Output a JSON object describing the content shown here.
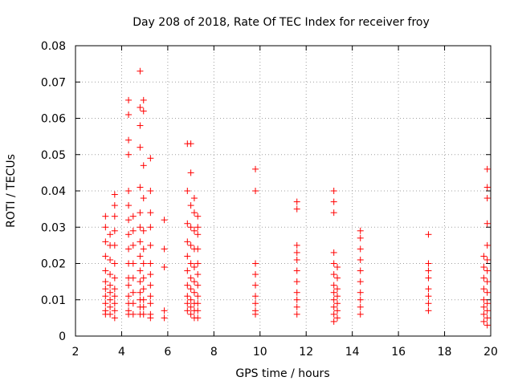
{
  "chart_data": {
    "type": "scatter",
    "title": "Day 208 of 2018, Rate Of TEC Index for receiver froy",
    "xlabel": "GPS time / hours",
    "ylabel": "ROTI / TECUs",
    "xlim": [
      2,
      20
    ],
    "ylim": [
      0,
      0.08
    ],
    "x_ticks": [
      "2",
      "4",
      "6",
      "8",
      "10",
      "12",
      "14",
      "16",
      "18",
      "20"
    ],
    "y_ticks": [
      "0",
      "0.01",
      "0.02",
      "0.03",
      "0.04",
      "0.05",
      "0.06",
      "0.07",
      "0.08"
    ],
    "grid": true,
    "marker": "+",
    "color": "#ff0000",
    "series": [
      {
        "name": "ROTI",
        "points": [
          [
            3.3,
            0.033
          ],
          [
            3.3,
            0.03
          ],
          [
            3.3,
            0.026
          ],
          [
            3.3,
            0.022
          ],
          [
            3.3,
            0.018
          ],
          [
            3.3,
            0.015
          ],
          [
            3.3,
            0.013
          ],
          [
            3.3,
            0.011
          ],
          [
            3.3,
            0.009
          ],
          [
            3.3,
            0.007
          ],
          [
            3.3,
            0.006
          ],
          [
            3.5,
            0.028
          ],
          [
            3.5,
            0.025
          ],
          [
            3.5,
            0.021
          ],
          [
            3.5,
            0.017
          ],
          [
            3.5,
            0.014
          ],
          [
            3.5,
            0.012
          ],
          [
            3.5,
            0.01
          ],
          [
            3.5,
            0.008
          ],
          [
            3.5,
            0.006
          ],
          [
            3.7,
            0.039
          ],
          [
            3.7,
            0.036
          ],
          [
            3.7,
            0.033
          ],
          [
            3.7,
            0.029
          ],
          [
            3.7,
            0.025
          ],
          [
            3.7,
            0.02
          ],
          [
            3.7,
            0.016
          ],
          [
            3.7,
            0.013
          ],
          [
            3.7,
            0.011
          ],
          [
            3.7,
            0.009
          ],
          [
            3.7,
            0.007
          ],
          [
            3.7,
            0.005
          ],
          [
            4.3,
            0.065
          ],
          [
            4.3,
            0.061
          ],
          [
            4.3,
            0.054
          ],
          [
            4.3,
            0.05
          ],
          [
            4.3,
            0.04
          ],
          [
            4.3,
            0.036
          ],
          [
            4.3,
            0.032
          ],
          [
            4.3,
            0.028
          ],
          [
            4.3,
            0.024
          ],
          [
            4.3,
            0.02
          ],
          [
            4.3,
            0.016
          ],
          [
            4.3,
            0.014
          ],
          [
            4.3,
            0.011
          ],
          [
            4.3,
            0.009
          ],
          [
            4.3,
            0.007
          ],
          [
            4.3,
            0.006
          ],
          [
            4.5,
            0.033
          ],
          [
            4.5,
            0.029
          ],
          [
            4.5,
            0.025
          ],
          [
            4.5,
            0.02
          ],
          [
            4.5,
            0.016
          ],
          [
            4.5,
            0.012
          ],
          [
            4.5,
            0.009
          ],
          [
            4.5,
            0.006
          ],
          [
            4.8,
            0.073
          ],
          [
            4.8,
            0.063
          ],
          [
            4.8,
            0.058
          ],
          [
            4.8,
            0.052
          ],
          [
            4.8,
            0.041
          ],
          [
            4.8,
            0.034
          ],
          [
            4.8,
            0.03
          ],
          [
            4.8,
            0.026
          ],
          [
            4.8,
            0.022
          ],
          [
            4.8,
            0.018
          ],
          [
            4.8,
            0.015
          ],
          [
            4.8,
            0.012
          ],
          [
            4.8,
            0.01
          ],
          [
            4.8,
            0.008
          ],
          [
            4.8,
            0.006
          ],
          [
            4.95,
            0.065
          ],
          [
            4.95,
            0.062
          ],
          [
            4.95,
            0.047
          ],
          [
            4.95,
            0.038
          ],
          [
            4.95,
            0.029
          ],
          [
            4.95,
            0.024
          ],
          [
            4.95,
            0.02
          ],
          [
            4.95,
            0.016
          ],
          [
            4.95,
            0.013
          ],
          [
            4.95,
            0.01
          ],
          [
            4.95,
            0.008
          ],
          [
            4.95,
            0.006
          ],
          [
            5.25,
            0.049
          ],
          [
            5.25,
            0.04
          ],
          [
            5.25,
            0.034
          ],
          [
            5.25,
            0.03
          ],
          [
            5.25,
            0.025
          ],
          [
            5.25,
            0.02
          ],
          [
            5.25,
            0.017
          ],
          [
            5.25,
            0.014
          ],
          [
            5.25,
            0.011
          ],
          [
            5.25,
            0.009
          ],
          [
            5.25,
            0.006
          ],
          [
            5.25,
            0.005
          ],
          [
            5.85,
            0.032
          ],
          [
            5.85,
            0.024
          ],
          [
            5.85,
            0.019
          ],
          [
            5.85,
            0.007
          ],
          [
            5.85,
            0.005
          ],
          [
            6.85,
            0.053
          ],
          [
            6.85,
            0.04
          ],
          [
            6.85,
            0.031
          ],
          [
            6.85,
            0.026
          ],
          [
            6.85,
            0.022
          ],
          [
            6.85,
            0.018
          ],
          [
            6.85,
            0.014
          ],
          [
            6.85,
            0.011
          ],
          [
            6.85,
            0.009
          ],
          [
            6.85,
            0.007
          ],
          [
            7.0,
            0.053
          ],
          [
            7.0,
            0.045
          ],
          [
            7.0,
            0.036
          ],
          [
            7.0,
            0.03
          ],
          [
            7.0,
            0.025
          ],
          [
            7.0,
            0.02
          ],
          [
            7.0,
            0.016
          ],
          [
            7.0,
            0.013
          ],
          [
            7.0,
            0.01
          ],
          [
            7.0,
            0.008
          ],
          [
            7.0,
            0.006
          ],
          [
            7.15,
            0.038
          ],
          [
            7.15,
            0.034
          ],
          [
            7.15,
            0.029
          ],
          [
            7.15,
            0.024
          ],
          [
            7.15,
            0.019
          ],
          [
            7.15,
            0.015
          ],
          [
            7.15,
            0.012
          ],
          [
            7.15,
            0.009
          ],
          [
            7.15,
            0.007
          ],
          [
            7.15,
            0.005
          ],
          [
            7.3,
            0.033
          ],
          [
            7.3,
            0.03
          ],
          [
            7.3,
            0.028
          ],
          [
            7.3,
            0.024
          ],
          [
            7.3,
            0.02
          ],
          [
            7.3,
            0.017
          ],
          [
            7.3,
            0.014
          ],
          [
            7.3,
            0.011
          ],
          [
            7.3,
            0.009
          ],
          [
            7.3,
            0.007
          ],
          [
            7.3,
            0.005
          ],
          [
            9.8,
            0.046
          ],
          [
            9.8,
            0.04
          ],
          [
            9.8,
            0.02
          ],
          [
            9.8,
            0.017
          ],
          [
            9.8,
            0.014
          ],
          [
            9.8,
            0.011
          ],
          [
            9.8,
            0.009
          ],
          [
            9.8,
            0.007
          ],
          [
            9.8,
            0.006
          ],
          [
            11.6,
            0.037
          ],
          [
            11.6,
            0.035
          ],
          [
            11.6,
            0.025
          ],
          [
            11.6,
            0.023
          ],
          [
            11.6,
            0.021
          ],
          [
            11.6,
            0.018
          ],
          [
            11.6,
            0.015
          ],
          [
            11.6,
            0.012
          ],
          [
            11.6,
            0.01
          ],
          [
            11.6,
            0.008
          ],
          [
            11.6,
            0.006
          ],
          [
            13.2,
            0.04
          ],
          [
            13.2,
            0.037
          ],
          [
            13.2,
            0.034
          ],
          [
            13.2,
            0.023
          ],
          [
            13.2,
            0.02
          ],
          [
            13.2,
            0.017
          ],
          [
            13.2,
            0.014
          ],
          [
            13.2,
            0.012
          ],
          [
            13.2,
            0.01
          ],
          [
            13.2,
            0.008
          ],
          [
            13.2,
            0.006
          ],
          [
            13.2,
            0.004
          ],
          [
            13.35,
            0.019
          ],
          [
            13.35,
            0.016
          ],
          [
            13.35,
            0.013
          ],
          [
            13.35,
            0.011
          ],
          [
            13.35,
            0.009
          ],
          [
            13.35,
            0.007
          ],
          [
            13.35,
            0.005
          ],
          [
            14.35,
            0.029
          ],
          [
            14.35,
            0.027
          ],
          [
            14.35,
            0.024
          ],
          [
            14.35,
            0.021
          ],
          [
            14.35,
            0.018
          ],
          [
            14.35,
            0.015
          ],
          [
            14.35,
            0.012
          ],
          [
            14.35,
            0.01
          ],
          [
            14.35,
            0.008
          ],
          [
            14.35,
            0.006
          ],
          [
            17.3,
            0.028
          ],
          [
            17.3,
            0.02
          ],
          [
            17.3,
            0.018
          ],
          [
            17.3,
            0.016
          ],
          [
            17.3,
            0.013
          ],
          [
            17.3,
            0.011
          ],
          [
            17.3,
            0.009
          ],
          [
            17.3,
            0.007
          ],
          [
            19.7,
            0.022
          ],
          [
            19.7,
            0.019
          ],
          [
            19.7,
            0.016
          ],
          [
            19.7,
            0.013
          ],
          [
            19.7,
            0.01
          ],
          [
            19.7,
            0.008
          ],
          [
            19.7,
            0.006
          ],
          [
            19.7,
            0.004
          ],
          [
            19.85,
            0.046
          ],
          [
            19.85,
            0.041
          ],
          [
            19.85,
            0.038
          ],
          [
            19.85,
            0.031
          ],
          [
            19.85,
            0.025
          ],
          [
            19.85,
            0.021
          ],
          [
            19.85,
            0.018
          ],
          [
            19.85,
            0.015
          ],
          [
            19.85,
            0.012
          ],
          [
            19.85,
            0.009
          ],
          [
            19.85,
            0.007
          ],
          [
            19.85,
            0.005
          ],
          [
            19.85,
            0.003
          ]
        ]
      }
    ]
  }
}
